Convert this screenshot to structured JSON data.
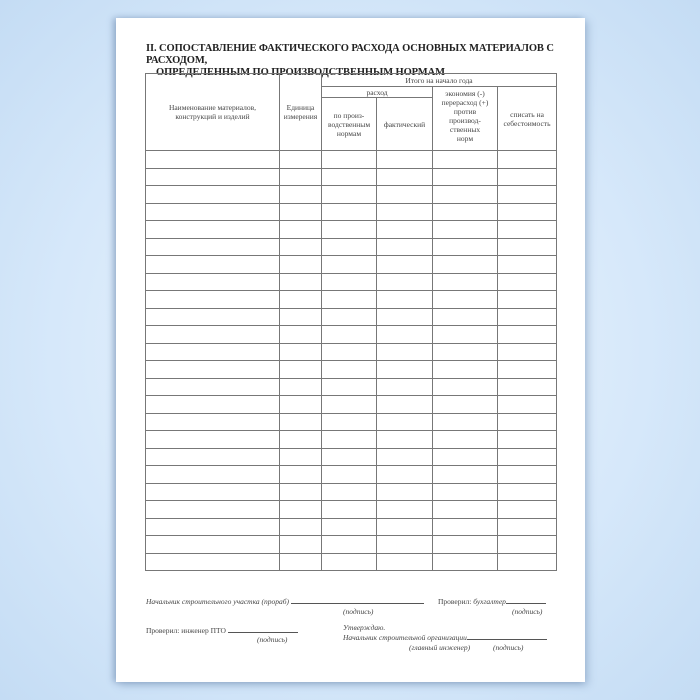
{
  "title": {
    "line1": "II. СОПОСТАВЛЕНИЕ ФАКТИЧЕСКОГО РАСХОДА ОСНОВНЫХ МАТЕРИАЛОВ С РАСХОДОМ,",
    "line2": "ОПРЕДЕЛЕННЫМ ПО ПРОИЗВОДСТВЕННЫМ НОРМАМ"
  },
  "table": {
    "col_name": "Наименование материалов, конструкций и изделий",
    "col_unit": "Единица измерения",
    "group_total": "Итого на начало года",
    "group_consumption": "расход",
    "col_norm": "по произ-водственным нормам",
    "col_actual": "фактический",
    "col_economy": "экономия (-) перерасход (+) против производ-ственных норм",
    "col_writeoff": "списать на себестоимость",
    "row_count": 24
  },
  "signatures": {
    "foreman": "Начальник строительного участка (прораб)",
    "checked_accountant_prefix": "Проверил:",
    "checked_accountant_role": "бухгалтер",
    "signature": "(подпись)",
    "checked_engineer": "Проверил: инженер ПТО",
    "approve": "Утверждаю.",
    "org_head": "Начальник строительной организации",
    "chief_engineer": "(главный инженер)"
  }
}
